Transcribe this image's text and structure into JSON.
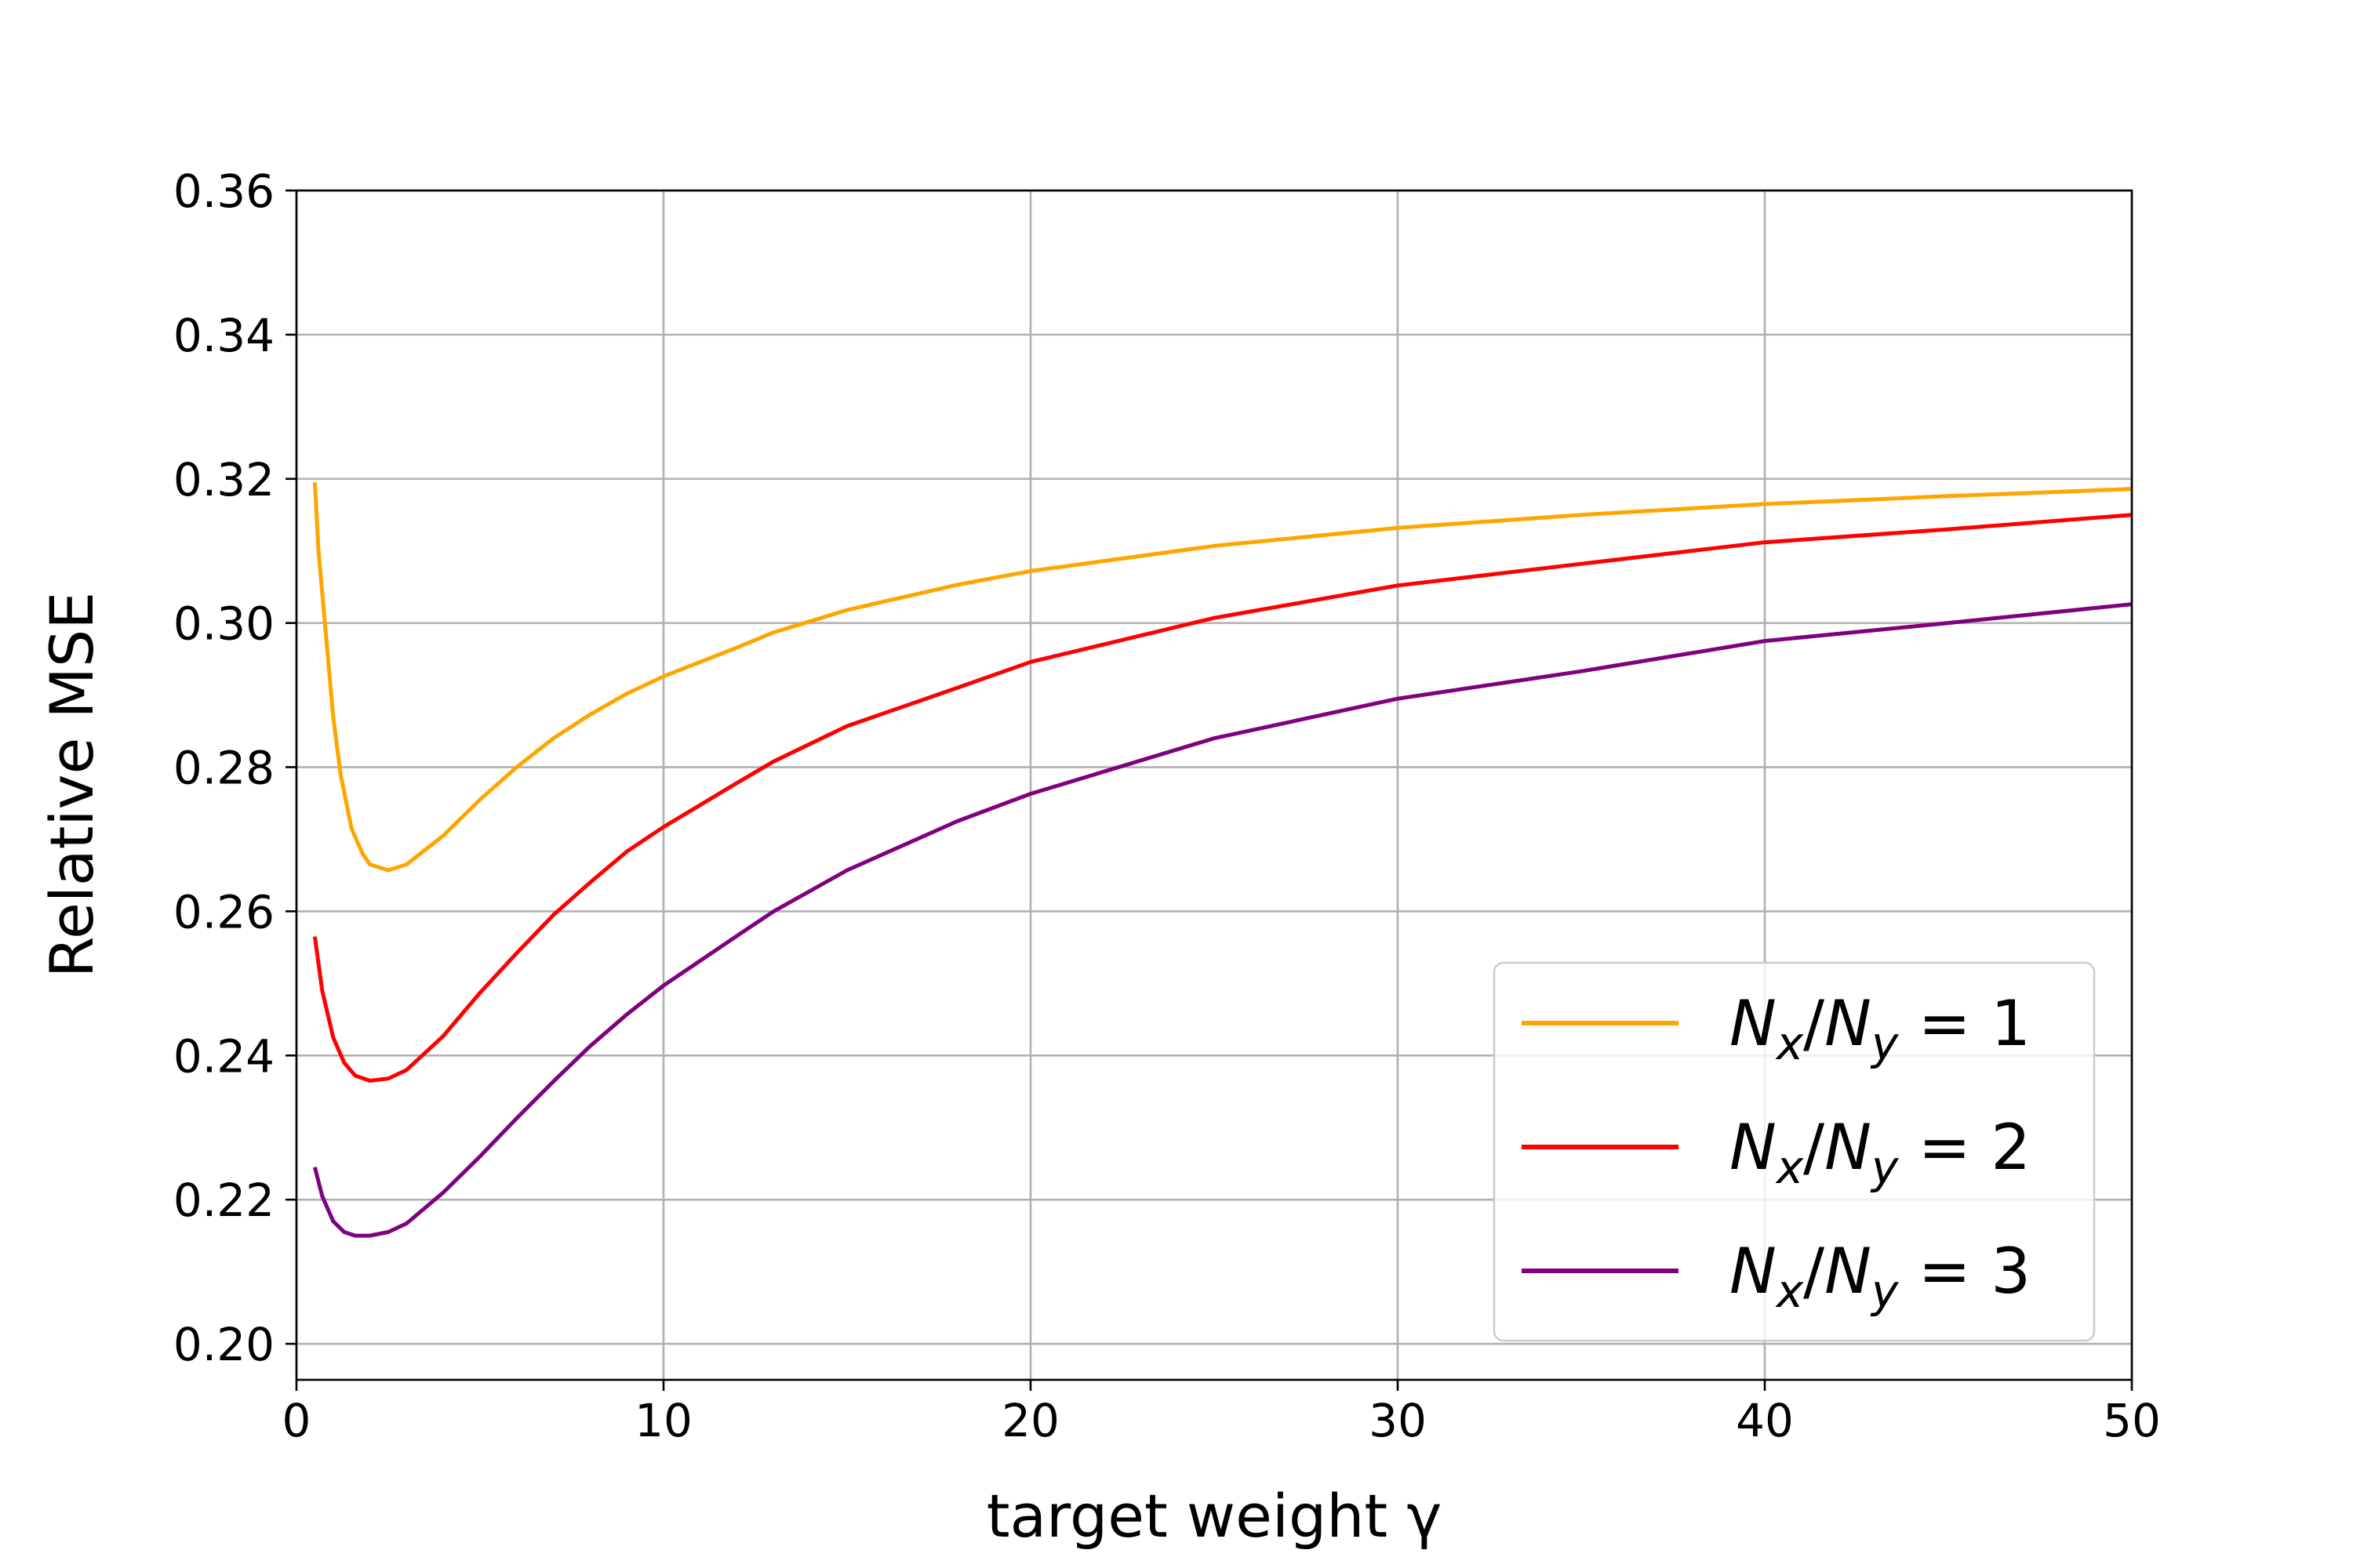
{
  "chart_data": {
    "type": "line",
    "title": "",
    "xlabel": "target weight γ",
    "ylabel": "Relative MSE",
    "xlim": [
      0,
      50
    ],
    "ylim": [
      0.195,
      0.36
    ],
    "xticks": [
      0,
      10,
      20,
      30,
      40,
      50
    ],
    "yticks": [
      0.2,
      0.22,
      0.24,
      0.26,
      0.28,
      0.3,
      0.32,
      0.34,
      0.36
    ],
    "xtick_labels": [
      "0",
      "10",
      "20",
      "30",
      "40",
      "50"
    ],
    "ytick_labels": [
      "0.20",
      "0.22",
      "0.24",
      "0.26",
      "0.28",
      "0.30",
      "0.32",
      "0.34",
      "0.36"
    ],
    "grid": true,
    "legend_position": "lower-right",
    "series": [
      {
        "name": "N_x/N_y = 1",
        "legend": {
          "a": "N",
          "a_sub": "x",
          "b": "N",
          "b_sub": "y",
          "value": "1"
        },
        "color": "#ffa500",
        "x": [
          0.5,
          0.6,
          0.8,
          1.0,
          1.2,
          1.5,
          1.8,
          2.0,
          2.5,
          3.0,
          4.0,
          5.0,
          6.0,
          7.0,
          8.0,
          9.0,
          10.0,
          12.0,
          13.0,
          15.0,
          18.0,
          20.0,
          25.0,
          30.0,
          35.0,
          40.0,
          45.0,
          50.0
        ],
        "y": [
          0.3195,
          0.31,
          0.2985,
          0.287,
          0.279,
          0.2715,
          0.268,
          0.2665,
          0.2657,
          0.2665,
          0.2705,
          0.2755,
          0.28,
          0.284,
          0.2873,
          0.2902,
          0.2926,
          0.2966,
          0.2987,
          0.3018,
          0.3053,
          0.3072,
          0.3107,
          0.3132,
          0.315,
          0.3165,
          0.3176,
          0.3186
        ]
      },
      {
        "name": "N_x/N_y = 2",
        "legend": {
          "a": "N",
          "a_sub": "x",
          "b": "N",
          "b_sub": "y",
          "value": "2"
        },
        "color": "#ff0000",
        "x": [
          0.5,
          0.7,
          1.0,
          1.3,
          1.6,
          2.0,
          2.5,
          3.0,
          4.0,
          5.0,
          6.0,
          7.0,
          8.0,
          9.0,
          10.0,
          12.0,
          13.0,
          15.0,
          18.0,
          20.0,
          25.0,
          30.0,
          35.0,
          40.0,
          45.0,
          50.0
        ],
        "y": [
          0.2565,
          0.249,
          0.2425,
          0.239,
          0.2372,
          0.2365,
          0.2368,
          0.238,
          0.2427,
          0.2487,
          0.2542,
          0.2595,
          0.264,
          0.2683,
          0.2717,
          0.2778,
          0.2808,
          0.2857,
          0.291,
          0.2946,
          0.3007,
          0.3052,
          0.3082,
          0.3112,
          0.313,
          0.315
        ]
      },
      {
        "name": "N_x/N_y = 3",
        "legend": {
          "a": "N",
          "a_sub": "x",
          "b": "N",
          "b_sub": "y",
          "value": "3"
        },
        "color": "#800080",
        "x": [
          0.5,
          0.7,
          1.0,
          1.3,
          1.6,
          2.0,
          2.5,
          3.0,
          4.0,
          5.0,
          6.0,
          7.0,
          8.0,
          9.0,
          10.0,
          12.0,
          13.0,
          15.0,
          18.0,
          20.0,
          25.0,
          30.0,
          35.0,
          40.0,
          45.0,
          50.0
        ],
        "y": [
          0.2245,
          0.2205,
          0.217,
          0.2155,
          0.215,
          0.215,
          0.2155,
          0.2167,
          0.221,
          0.226,
          0.2313,
          0.2364,
          0.2413,
          0.2457,
          0.2497,
          0.2566,
          0.26,
          0.2657,
          0.2725,
          0.2763,
          0.284,
          0.2895,
          0.2933,
          0.2975,
          0.3,
          0.3026
        ]
      }
    ]
  }
}
